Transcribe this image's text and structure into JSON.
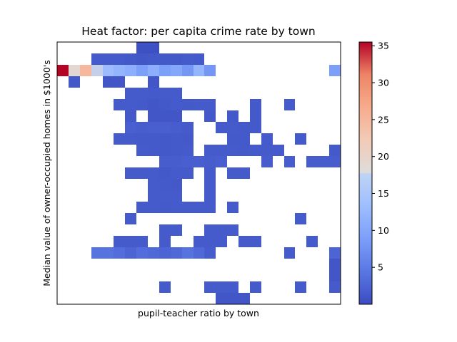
{
  "chart_data": {
    "type": "heatmap",
    "title": "Heat factor: per capita crime rate by town",
    "xlabel": "pupil-teacher ratio by town",
    "ylabel": "Median value of owner-occupied homes in $1000's",
    "x_ticks_shown": false,
    "y_ticks_shown": false,
    "grid": false,
    "colormap": "coolwarm",
    "colorbar": {
      "min": 0,
      "max": 35.5,
      "ticks": [
        5,
        10,
        15,
        20,
        25,
        30,
        35
      ],
      "tick_labels": [
        "5",
        "10",
        "15",
        "20",
        "25",
        "30",
        "35"
      ],
      "placement": "right"
    },
    "n_cols": 25,
    "n_rows": 23,
    "cells": [
      [
        0,
        7,
        0.5
      ],
      [
        0,
        8,
        0.5
      ],
      [
        1,
        3,
        1.5
      ],
      [
        1,
        4,
        1.5
      ],
      [
        1,
        5,
        1.5
      ],
      [
        1,
        6,
        1.2
      ],
      [
        1,
        7,
        1.0
      ],
      [
        1,
        8,
        1.2
      ],
      [
        1,
        9,
        1.2
      ],
      [
        1,
        10,
        1.2
      ],
      [
        1,
        11,
        1.5
      ],
      [
        1,
        12,
        1.3
      ],
      [
        2,
        0,
        35.5
      ],
      [
        2,
        1,
        19
      ],
      [
        2,
        2,
        25
      ],
      [
        2,
        3,
        16
      ],
      [
        2,
        4,
        13
      ],
      [
        2,
        5,
        12
      ],
      [
        2,
        6,
        11
      ],
      [
        2,
        7,
        9
      ],
      [
        2,
        8,
        11
      ],
      [
        2,
        9,
        9
      ],
      [
        2,
        10,
        10
      ],
      [
        2,
        11,
        8
      ],
      [
        2,
        12,
        12
      ],
      [
        2,
        13,
        8
      ],
      [
        2,
        24,
        9
      ],
      [
        3,
        1,
        1.2
      ],
      [
        3,
        4,
        1.0
      ],
      [
        3,
        5,
        1.0
      ],
      [
        3,
        8,
        1.0
      ],
      [
        4,
        6,
        1.5
      ],
      [
        4,
        7,
        1.5
      ],
      [
        4,
        8,
        1.3
      ],
      [
        4,
        9,
        1.5
      ],
      [
        4,
        10,
        1.5
      ],
      [
        5,
        5,
        1.5
      ],
      [
        5,
        6,
        1.5
      ],
      [
        5,
        7,
        1.3
      ],
      [
        5,
        8,
        1.0
      ],
      [
        5,
        9,
        1.2
      ],
      [
        5,
        10,
        1.5
      ],
      [
        5,
        11,
        1.3
      ],
      [
        5,
        12,
        1.5
      ],
      [
        5,
        13,
        1.5
      ],
      [
        5,
        17,
        1.3
      ],
      [
        5,
        20,
        1.5
      ],
      [
        6,
        6,
        1.2
      ],
      [
        6,
        8,
        1.0
      ],
      [
        6,
        9,
        1.0
      ],
      [
        6,
        10,
        1.0
      ],
      [
        6,
        13,
        1.2
      ],
      [
        6,
        15,
        1.2
      ],
      [
        6,
        17,
        1.3
      ],
      [
        7,
        6,
        2.0
      ],
      [
        7,
        7,
        1.8
      ],
      [
        7,
        8,
        2.0
      ],
      [
        7,
        9,
        2.0
      ],
      [
        7,
        10,
        1.8
      ],
      [
        7,
        11,
        1.5
      ],
      [
        7,
        14,
        1.5
      ],
      [
        7,
        15,
        1.5
      ],
      [
        7,
        16,
        1.3
      ],
      [
        7,
        17,
        1.3
      ],
      [
        8,
        5,
        1.5
      ],
      [
        8,
        6,
        1.5
      ],
      [
        8,
        7,
        1.3
      ],
      [
        8,
        8,
        1.3
      ],
      [
        8,
        9,
        1.2
      ],
      [
        8,
        10,
        1.3
      ],
      [
        8,
        11,
        1.2
      ],
      [
        8,
        15,
        1.3
      ],
      [
        8,
        16,
        1.3
      ],
      [
        8,
        18,
        1.5
      ],
      [
        8,
        21,
        1.3
      ],
      [
        9,
        7,
        1.5
      ],
      [
        9,
        8,
        1.3
      ],
      [
        9,
        9,
        1.2
      ],
      [
        9,
        10,
        1.3
      ],
      [
        9,
        11,
        1.5
      ],
      [
        9,
        13,
        1.5
      ],
      [
        9,
        14,
        1.5
      ],
      [
        9,
        15,
        1.5
      ],
      [
        9,
        16,
        1.3
      ],
      [
        9,
        17,
        1.5
      ],
      [
        9,
        18,
        1.5
      ],
      [
        9,
        19,
        1.5
      ],
      [
        9,
        24,
        1.3
      ],
      [
        10,
        9,
        1.8
      ],
      [
        10,
        10,
        1.8
      ],
      [
        10,
        11,
        2.0
      ],
      [
        10,
        12,
        2.0
      ],
      [
        10,
        13,
        1.8
      ],
      [
        10,
        14,
        2.0
      ],
      [
        10,
        18,
        1.8
      ],
      [
        10,
        20,
        1.8
      ],
      [
        10,
        22,
        1.8
      ],
      [
        10,
        23,
        1.8
      ],
      [
        10,
        24,
        1.8
      ],
      [
        11,
        6,
        1.5
      ],
      [
        11,
        7,
        1.5
      ],
      [
        11,
        8,
        1.5
      ],
      [
        11,
        9,
        1.2
      ],
      [
        11,
        10,
        1.5
      ],
      [
        11,
        11,
        1.5
      ],
      [
        11,
        13,
        1.5
      ],
      [
        11,
        15,
        1.5
      ],
      [
        11,
        16,
        1.5
      ],
      [
        12,
        8,
        1.5
      ],
      [
        12,
        9,
        1.3
      ],
      [
        12,
        10,
        1.2
      ],
      [
        12,
        13,
        1.5
      ],
      [
        13,
        8,
        1.5
      ],
      [
        13,
        9,
        1.5
      ],
      [
        13,
        10,
        1.5
      ],
      [
        13,
        13,
        1.5
      ],
      [
        14,
        7,
        1.5
      ],
      [
        14,
        8,
        1.5
      ],
      [
        14,
        9,
        1.3
      ],
      [
        14,
        10,
        1.5
      ],
      [
        14,
        11,
        1.5
      ],
      [
        14,
        12,
        1.5
      ],
      [
        14,
        13,
        1.5
      ],
      [
        14,
        15,
        1.5
      ],
      [
        15,
        6,
        1.5
      ],
      [
        15,
        21,
        1.5
      ],
      [
        16,
        9,
        1.5
      ],
      [
        16,
        10,
        1.5
      ],
      [
        16,
        13,
        1.5
      ],
      [
        16,
        14,
        1.5
      ],
      [
        16,
        15,
        1.5
      ],
      [
        17,
        5,
        1.5
      ],
      [
        17,
        6,
        1.5
      ],
      [
        17,
        7,
        1.5
      ],
      [
        17,
        9,
        1.5
      ],
      [
        17,
        12,
        1.5
      ],
      [
        17,
        13,
        1.5
      ],
      [
        17,
        14,
        1.5
      ],
      [
        17,
        16,
        1.5
      ],
      [
        17,
        17,
        1.5
      ],
      [
        17,
        22,
        1.5
      ],
      [
        18,
        3,
        4.0
      ],
      [
        18,
        4,
        4.0
      ],
      [
        18,
        5,
        3.5
      ],
      [
        18,
        6,
        2.5
      ],
      [
        18,
        7,
        3.5
      ],
      [
        18,
        8,
        3.0
      ],
      [
        18,
        9,
        2.5
      ],
      [
        18,
        10,
        3.0
      ],
      [
        18,
        11,
        4.0
      ],
      [
        18,
        12,
        3.0
      ],
      [
        18,
        13,
        1.8
      ],
      [
        18,
        20,
        1.5
      ],
      [
        18,
        24,
        2.5
      ],
      [
        19,
        24,
        1.0
      ],
      [
        20,
        24,
        1.0
      ],
      [
        21,
        9,
        1.5
      ],
      [
        21,
        13,
        1.5
      ],
      [
        21,
        14,
        1.5
      ],
      [
        21,
        15,
        1.5
      ],
      [
        21,
        17,
        1.5
      ],
      [
        21,
        21,
        1.5
      ],
      [
        21,
        24,
        1.5
      ],
      [
        22,
        14,
        1.0
      ],
      [
        22,
        15,
        1.0
      ],
      [
        22,
        16,
        1.0
      ]
    ]
  }
}
